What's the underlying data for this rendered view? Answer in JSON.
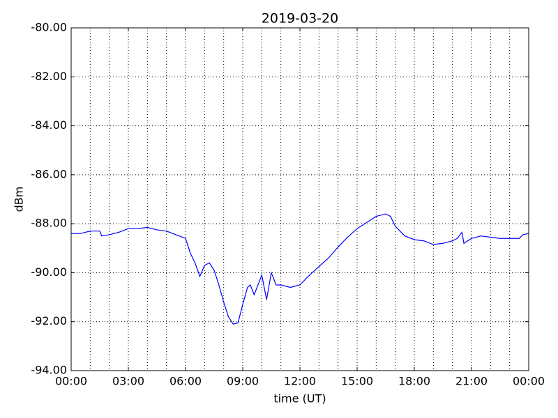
{
  "chart_data": {
    "type": "line",
    "title": "2019-03-20",
    "x_label": "time (UT)",
    "y_label": "dBm",
    "x": [
      0,
      0.5,
      1,
      1.5,
      1.6,
      2,
      2.5,
      3,
      3.5,
      4,
      4.5,
      5,
      5.5,
      6,
      6.25,
      6.5,
      6.75,
      7,
      7.25,
      7.5,
      7.75,
      8,
      8.25,
      8.5,
      8.75,
      9,
      9.25,
      9.4,
      9.6,
      9.8,
      10,
      10.25,
      10.5,
      10.75,
      11,
      11.5,
      12,
      12.5,
      13,
      13.5,
      14,
      14.5,
      15,
      15.5,
      16,
      16.5,
      16.75,
      17,
      17.5,
      18,
      18.5,
      19,
      19.5,
      20,
      20.25,
      20.5,
      20.6,
      21,
      21.5,
      22,
      22.5,
      23,
      23.5,
      23.7,
      24
    ],
    "series": [
      {
        "name": "dBm",
        "color": "#0000ff",
        "values": [
          -88.4,
          -88.4,
          -88.3,
          -88.3,
          -88.5,
          -88.45,
          -88.35,
          -88.2,
          -88.2,
          -88.15,
          -88.25,
          -88.3,
          -88.45,
          -88.6,
          -89.2,
          -89.6,
          -90.15,
          -89.7,
          -89.6,
          -89.9,
          -90.5,
          -91.2,
          -91.8,
          -92.1,
          -92.05,
          -91.3,
          -90.6,
          -90.5,
          -90.9,
          -90.5,
          -90.1,
          -91.1,
          -90.0,
          -90.5,
          -90.5,
          -90.6,
          -90.5,
          -90.1,
          -89.75,
          -89.4,
          -88.95,
          -88.55,
          -88.2,
          -87.95,
          -87.7,
          -87.6,
          -87.7,
          -88.1,
          -88.5,
          -88.65,
          -88.7,
          -88.85,
          -88.8,
          -88.7,
          -88.6,
          -88.35,
          -88.8,
          -88.6,
          -88.5,
          -88.55,
          -88.6,
          -88.6,
          -88.6,
          -88.45,
          -88.4
        ]
      }
    ],
    "xlim": [
      0,
      24
    ],
    "xticks": [
      {
        "value": 0,
        "label": "00:00"
      },
      {
        "value": 3,
        "label": "03:00"
      },
      {
        "value": 6,
        "label": "06:00"
      },
      {
        "value": 9,
        "label": "09:00"
      },
      {
        "value": 12,
        "label": "12:00"
      },
      {
        "value": 15,
        "label": "15:00"
      },
      {
        "value": 18,
        "label": "18:00"
      },
      {
        "value": 21,
        "label": "21:00"
      },
      {
        "value": 24,
        "label": "00:00"
      }
    ],
    "x_grid_lines": [
      1,
      2,
      3,
      4,
      5,
      6,
      7,
      8,
      9,
      10,
      11,
      12,
      13,
      14,
      15,
      16,
      17,
      18,
      19,
      20,
      21,
      22,
      23
    ],
    "ylim": [
      -94,
      -80
    ],
    "yticks": [
      {
        "value": -94,
        "label": "-94.00"
      },
      {
        "value": -92,
        "label": "-92.00"
      },
      {
        "value": -90,
        "label": "-90.00"
      },
      {
        "value": -88,
        "label": "-88.00"
      },
      {
        "value": -86,
        "label": "-86.00"
      },
      {
        "value": -84,
        "label": "-84.00"
      },
      {
        "value": -82,
        "label": "-82.00"
      },
      {
        "value": -80,
        "label": "-80.00"
      }
    ],
    "grid": true
  }
}
